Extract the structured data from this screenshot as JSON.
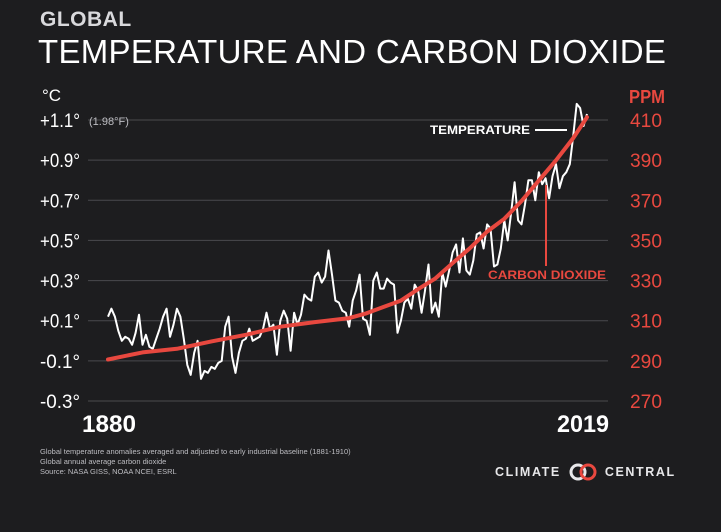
{
  "header": {
    "kicker": "GLOBAL",
    "title": "TEMPERATURE AND CARBON DIOXIDE"
  },
  "footnotes": [
    "Global temperature anomalies averaged and adjusted to early industrial baseline (1881-1910)",
    "Global annual average carbon dioxide",
    "Source: NASA GISS, NOAA NCEI, ESRL"
  ],
  "brand": {
    "left_word": "CLIMATE",
    "right_word": "CENTRAL",
    "logo_icon": "interlocking-rings-icon"
  },
  "colors": {
    "background": "#1d1d1f",
    "temperature": "#ffffff",
    "co2": "#e8483f",
    "grid": "#4a4a4e"
  },
  "chart_data": {
    "type": "line",
    "grid": true,
    "x_range": [
      1880,
      2019
    ],
    "x_tick_labels": [
      "1880",
      "2019"
    ],
    "left_axis": {
      "unit": "°C",
      "range": [
        -0.3,
        1.1
      ],
      "ticks": [
        {
          "value": 1.1,
          "label": "+1.1°"
        },
        {
          "value": 0.9,
          "label": "+0.9°"
        },
        {
          "value": 0.7,
          "label": "+0.7°"
        },
        {
          "value": 0.5,
          "label": "+0.5°"
        },
        {
          "value": 0.3,
          "label": "+0.3°"
        },
        {
          "value": 0.1,
          "label": "+0.1°"
        },
        {
          "value": -0.1,
          "label": "-0.1°"
        },
        {
          "value": -0.3,
          "label": "-0.3°"
        }
      ],
      "top_note": "(1.98°F)"
    },
    "right_axis": {
      "unit": "PPM",
      "range": [
        270,
        410
      ],
      "ticks": [
        {
          "value": 410,
          "label": "410"
        },
        {
          "value": 390,
          "label": "390"
        },
        {
          "value": 370,
          "label": "370"
        },
        {
          "value": 350,
          "label": "350"
        },
        {
          "value": 330,
          "label": "330"
        },
        {
          "value": 310,
          "label": "310"
        },
        {
          "value": 290,
          "label": "290"
        },
        {
          "value": 270,
          "label": "270"
        }
      ]
    },
    "series": [
      {
        "name": "TEMPERATURE",
        "axis": "left",
        "x": [
          1880,
          1881,
          1882,
          1883,
          1884,
          1885,
          1886,
          1887,
          1888,
          1889,
          1890,
          1891,
          1892,
          1893,
          1894,
          1895,
          1896,
          1897,
          1898,
          1899,
          1900,
          1901,
          1902,
          1903,
          1904,
          1905,
          1906,
          1907,
          1908,
          1909,
          1910,
          1911,
          1912,
          1913,
          1914,
          1915,
          1916,
          1917,
          1918,
          1919,
          1920,
          1921,
          1922,
          1923,
          1924,
          1925,
          1926,
          1927,
          1928,
          1929,
          1930,
          1931,
          1932,
          1933,
          1934,
          1935,
          1936,
          1937,
          1938,
          1939,
          1940,
          1941,
          1942,
          1943,
          1944,
          1945,
          1946,
          1947,
          1948,
          1949,
          1950,
          1951,
          1952,
          1953,
          1954,
          1955,
          1956,
          1957,
          1958,
          1959,
          1960,
          1961,
          1962,
          1963,
          1964,
          1965,
          1966,
          1967,
          1968,
          1969,
          1970,
          1971,
          1972,
          1973,
          1974,
          1975,
          1976,
          1977,
          1978,
          1979,
          1980,
          1981,
          1982,
          1983,
          1984,
          1985,
          1986,
          1987,
          1988,
          1989,
          1990,
          1991,
          1992,
          1993,
          1994,
          1995,
          1996,
          1997,
          1998,
          1999,
          2000,
          2001,
          2002,
          2003,
          2004,
          2005,
          2006,
          2007,
          2008,
          2009,
          2010,
          2011,
          2012,
          2013,
          2014,
          2015,
          2016,
          2017,
          2018,
          2019
        ],
        "y": [
          0.12,
          0.16,
          0.12,
          0.05,
          0.0,
          0.02,
          0.01,
          -0.02,
          0.04,
          0.13,
          -0.02,
          0.03,
          -0.03,
          -0.04,
          0.01,
          0.06,
          0.12,
          0.16,
          0.02,
          0.08,
          0.16,
          0.12,
          0.01,
          -0.12,
          -0.17,
          -0.06,
          0.0,
          -0.19,
          -0.15,
          -0.16,
          -0.13,
          -0.14,
          -0.11,
          -0.1,
          0.07,
          0.12,
          -0.08,
          -0.16,
          -0.06,
          0.0,
          0.01,
          0.06,
          0.0,
          0.01,
          0.02,
          0.06,
          0.14,
          0.06,
          0.08,
          -0.07,
          0.1,
          0.15,
          0.11,
          -0.05,
          0.14,
          0.08,
          0.13,
          0.23,
          0.21,
          0.2,
          0.32,
          0.34,
          0.29,
          0.32,
          0.45,
          0.33,
          0.2,
          0.19,
          0.15,
          0.14,
          0.07,
          0.2,
          0.25,
          0.33,
          0.11,
          0.1,
          0.03,
          0.3,
          0.34,
          0.26,
          0.26,
          0.31,
          0.29,
          0.28,
          0.04,
          0.1,
          0.19,
          0.21,
          0.16,
          0.28,
          0.25,
          0.14,
          0.25,
          0.38,
          0.14,
          0.19,
          0.12,
          0.34,
          0.27,
          0.35,
          0.44,
          0.48,
          0.34,
          0.51,
          0.35,
          0.33,
          0.4,
          0.53,
          0.54,
          0.46,
          0.58,
          0.56,
          0.37,
          0.38,
          0.46,
          0.6,
          0.5,
          0.64,
          0.79,
          0.6,
          0.58,
          0.68,
          0.8,
          0.8,
          0.7,
          0.84,
          0.78,
          0.81,
          0.71,
          0.82,
          0.88,
          0.76,
          0.82,
          0.84,
          0.88,
          1.02,
          1.18,
          1.16,
          1.07,
          1.13
        ]
      },
      {
        "name": "CARBON DIOXIDE",
        "axis": "right",
        "x": [
          1880,
          1890,
          1900,
          1910,
          1920,
          1930,
          1940,
          1950,
          1955,
          1960,
          1965,
          1970,
          1975,
          1980,
          1985,
          1990,
          1995,
          2000,
          2005,
          2010,
          2015,
          2019
        ],
        "y": [
          290.7,
          294.2,
          296.0,
          299.7,
          303.0,
          307.0,
          309.3,
          311.3,
          313.7,
          316.9,
          320.0,
          325.7,
          331.1,
          338.7,
          346.1,
          354.4,
          360.8,
          369.6,
          379.8,
          389.9,
          401.0,
          411.4
        ]
      }
    ],
    "annotations": [
      {
        "text": "TEMPERATURE",
        "series": "TEMPERATURE"
      },
      {
        "text": "CARBON DIOXIDE",
        "series": "CARBON DIOXIDE"
      }
    ]
  }
}
